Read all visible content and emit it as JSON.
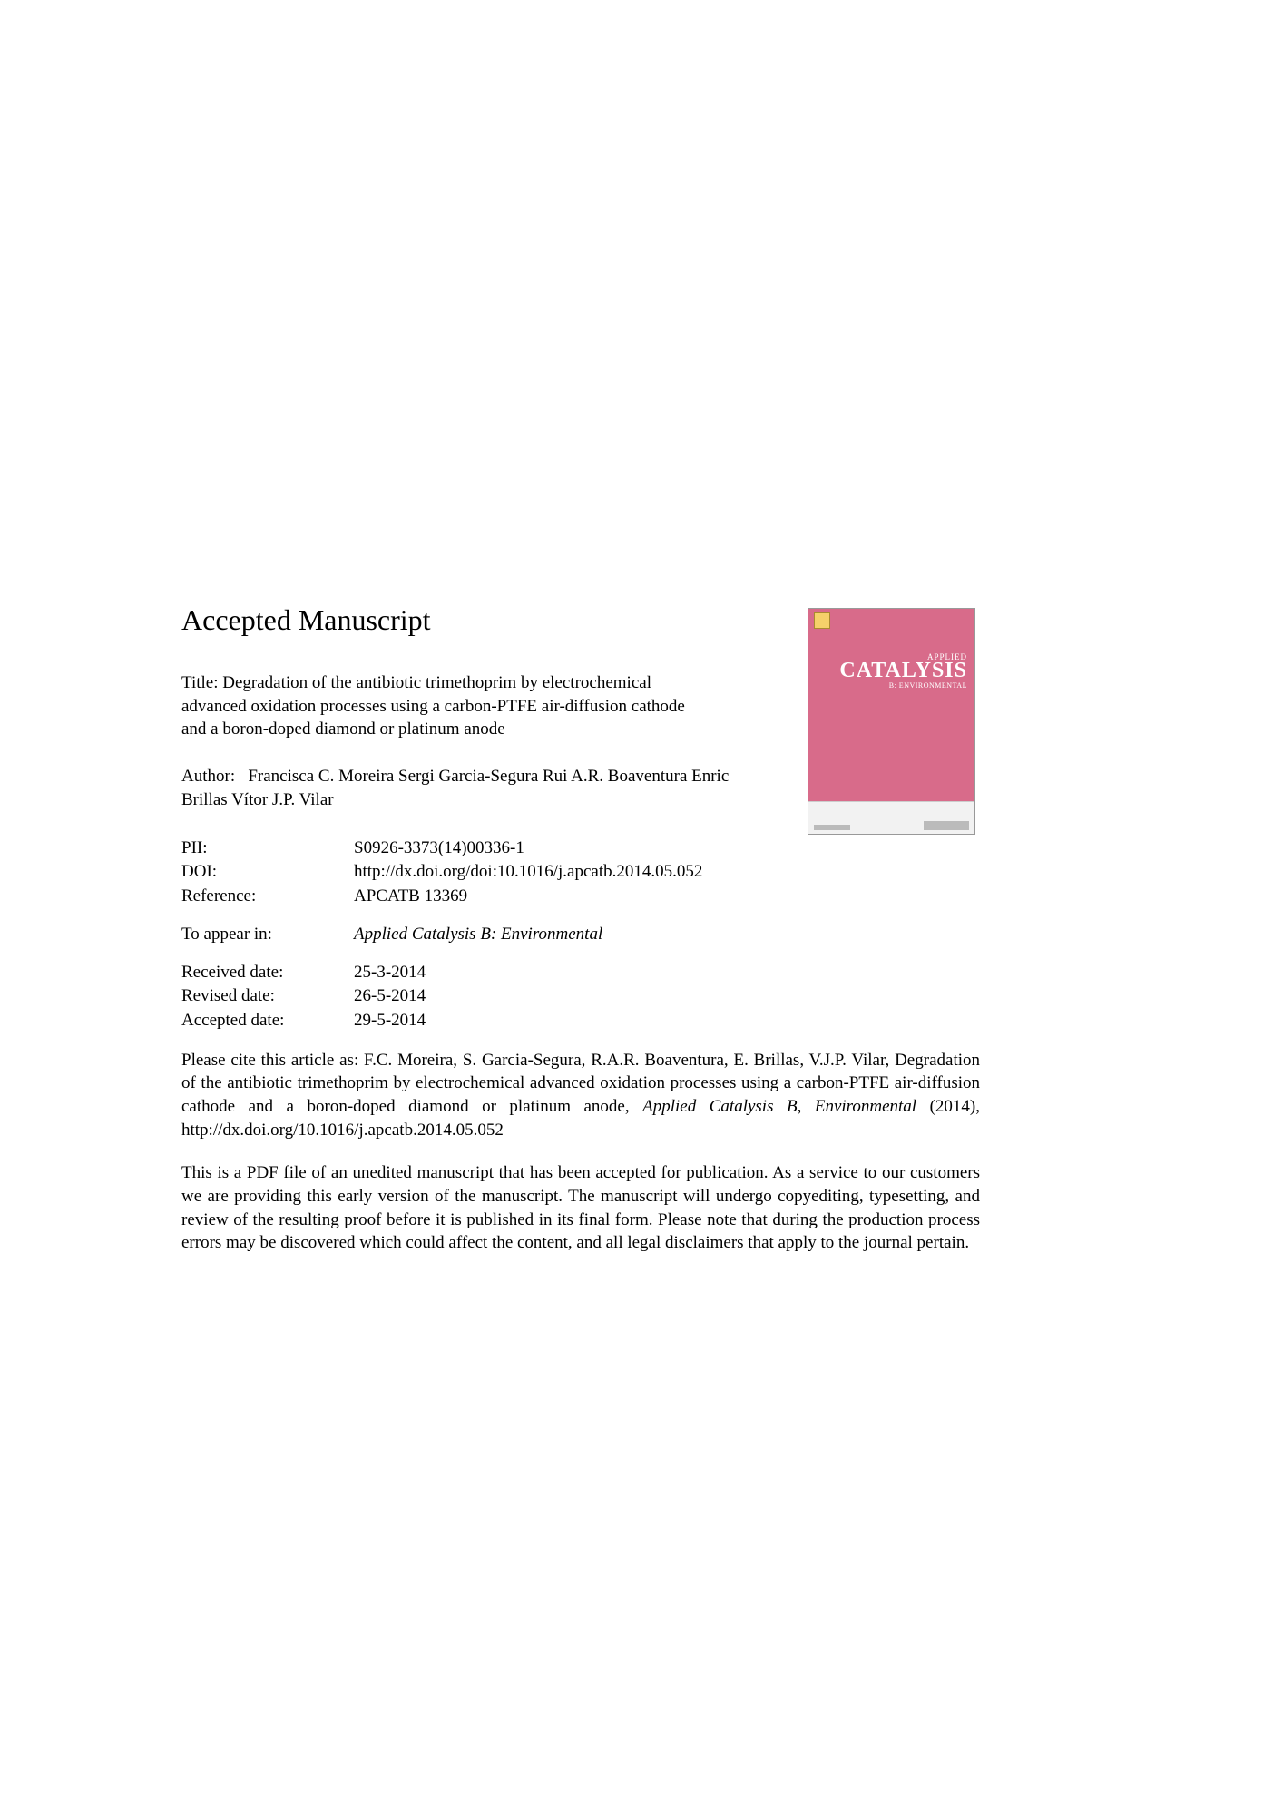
{
  "heading": "Accepted Manuscript",
  "title_label": "Title:",
  "title_text": "Degradation of the antibiotic trimethoprim by electrochemical advanced oxidation processes using a carbon-PTFE air-diffusion cathode and a boron-doped diamond or platinum anode",
  "author_label": "Author:",
  "author_text": "Francisca C. Moreira Sergi Garcia-Segura Rui A.R. Boaventura Enric Brillas Vítor J.P. Vilar",
  "meta": {
    "pii_label": "PII:",
    "pii_value": "S0926-3373(14)00336-1",
    "doi_label": "DOI:",
    "doi_value": "http://dx.doi.org/doi:10.1016/j.apcatb.2014.05.052",
    "ref_label": "Reference:",
    "ref_value": "APCATB 13369",
    "appear_label": "To appear in:",
    "appear_value": "Applied Catalysis B: Environmental",
    "received_label": "Received date:",
    "received_value": "25-3-2014",
    "revised_label": "Revised date:",
    "revised_value": "26-5-2014",
    "accepted_label": "Accepted date:",
    "accepted_value": "29-5-2014"
  },
  "citation_pre": "Please cite this article as: F.C. Moreira, S. Garcia-Segura, R.A.R. Boaventura, E. Brillas, V.J.P. Vilar, Degradation of the antibiotic trimethoprim by electrochemical advanced oxidation processes using a carbon-PTFE air-diffusion cathode and a boron-doped diamond or platinum anode, ",
  "citation_journal": "Applied Catalysis B, Environmental",
  "citation_post": " (2014), http://dx.doi.org/10.1016/j.apcatb.2014.05.052",
  "disclaimer": "This is a PDF file of an unedited manuscript that has been accepted for publication. As a service to our customers we are providing this early version of the manuscript. The manuscript will undergo copyediting, typesetting, and review of the resulting proof before it is published in its final form. Please note that during the production process errors may be discovered which could affect the content, and all legal disclaimers that apply to the journal pertain.",
  "cover": {
    "applied": "APPLIED",
    "catalysis": "CATALYSIS",
    "sub": "B: ENVIRONMENTAL",
    "bg_color": "#d86b8a",
    "footer_bg": "#f2f2f2"
  }
}
